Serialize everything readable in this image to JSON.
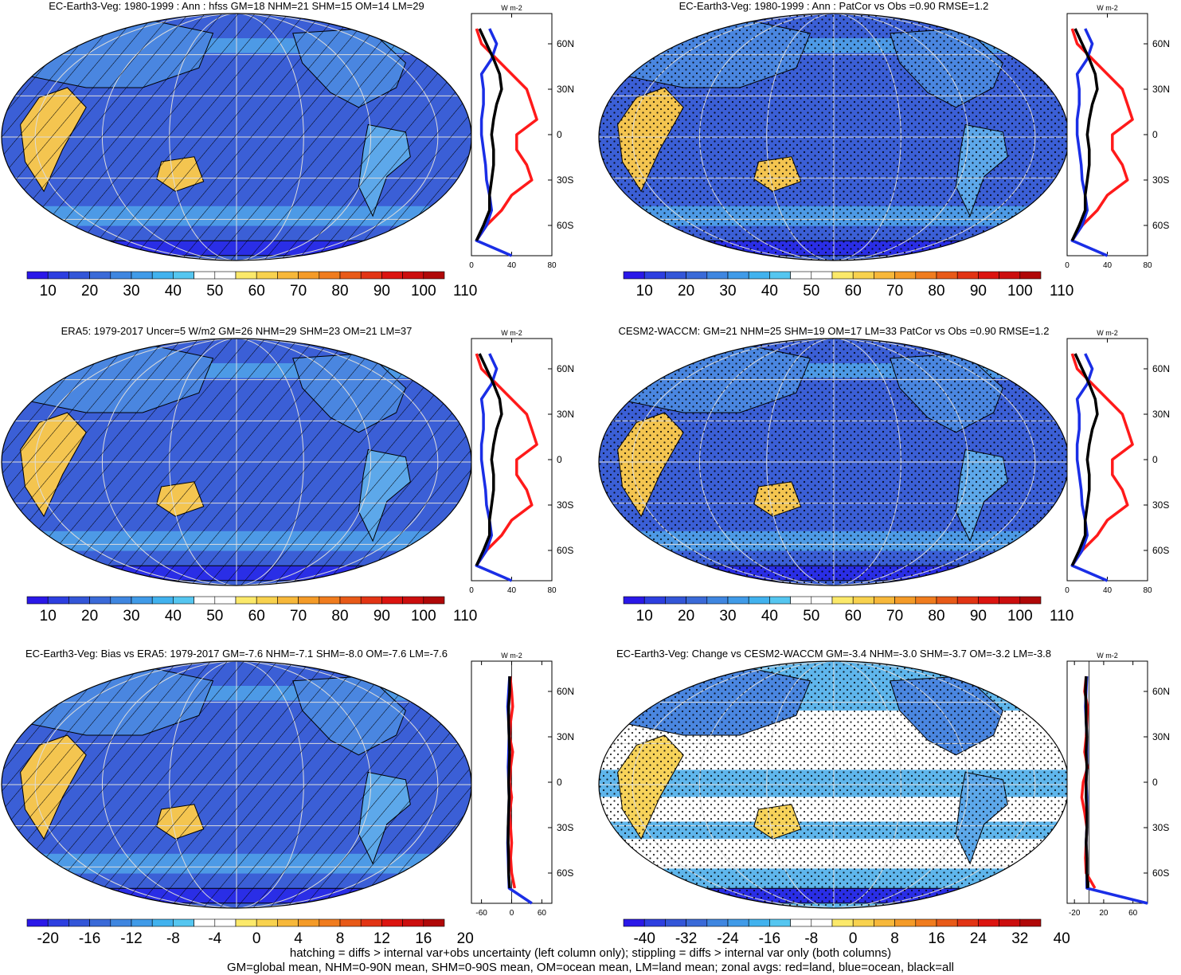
{
  "colors": {
    "deep_blue": "#2a2ee6",
    "blue": "#3a62d8",
    "mid_blue": "#3f88e6",
    "light_blue": "#56b4ee",
    "white": "#ffffff",
    "yellow": "#f7d35a",
    "orange": "#f39a2a",
    "red": "#e2321c",
    "land_line": "#ff1a1a",
    "ocean_line": "#1a2ee6",
    "all_line": "#000000",
    "grid": "#dcdcdc"
  },
  "panels": [
    {
      "title": "EC-Earth3-Veg: 1980-1999 : Ann : hfss GM=18 NHM=21 SHM=15 OM=14 LM=29",
      "hatching": true,
      "stipple": false,
      "base_color": "blue",
      "colorbar": {
        "labels": [
          "10",
          "20",
          "30",
          "40",
          "50",
          "60",
          "70",
          "80",
          "90",
          "100",
          "110"
        ],
        "colors": [
          "#2a18e8",
          "#2d3fe0",
          "#3356d8",
          "#3a6ad8",
          "#3f86e0",
          "#409be8",
          "#41b2ee",
          "#55c6f0",
          "#ffffff",
          "#ffffff",
          "#fbe96a",
          "#f8d24e",
          "#f7b83a",
          "#f49b28",
          "#f07c1e",
          "#e85a18",
          "#e23414",
          "#dc1410",
          "#cc0e0e",
          "#b00808"
        ]
      },
      "profile": {
        "unit": "W m-2",
        "x_ticks": [
          "0",
          "40",
          "80"
        ],
        "y_ticks": [
          "60N",
          "30N",
          "0",
          "30S",
          "60S"
        ],
        "xlim": [
          0,
          80
        ]
      }
    },
    {
      "title": "EC-Earth3-Veg: 1980-1999 : Ann : PatCor vs Obs =0.90 RMSE=1.2",
      "hatching": false,
      "stipple": true,
      "base_color": "blue",
      "colorbar": {
        "labels": [
          "10",
          "20",
          "30",
          "40",
          "50",
          "60",
          "70",
          "80",
          "90",
          "100",
          "110"
        ],
        "colors": [
          "#2a18e8",
          "#2d3fe0",
          "#3356d8",
          "#3a6ad8",
          "#3f86e0",
          "#409be8",
          "#41b2ee",
          "#55c6f0",
          "#ffffff",
          "#ffffff",
          "#fbe96a",
          "#f8d24e",
          "#f7b83a",
          "#f49b28",
          "#f07c1e",
          "#e85a18",
          "#e23414",
          "#dc1410",
          "#cc0e0e",
          "#b00808"
        ]
      },
      "profile": {
        "unit": "W m-2",
        "x_ticks": [
          "0",
          "40",
          "80"
        ],
        "y_ticks": [
          "60N",
          "30N",
          "0",
          "30S",
          "60S"
        ],
        "xlim": [
          0,
          80
        ]
      }
    },
    {
      "title": "ERA5: 1979-2017 Uncer=5 W/m2 GM=26 NHM=29 SHM=23 OM=21 LM=37",
      "hatching": true,
      "stipple": false,
      "base_color": "blue",
      "colorbar": {
        "labels": [
          "10",
          "20",
          "30",
          "40",
          "50",
          "60",
          "70",
          "80",
          "90",
          "100",
          "110"
        ],
        "colors": [
          "#2a18e8",
          "#2d3fe0",
          "#3356d8",
          "#3a6ad8",
          "#3f86e0",
          "#409be8",
          "#41b2ee",
          "#55c6f0",
          "#ffffff",
          "#ffffff",
          "#fbe96a",
          "#f8d24e",
          "#f7b83a",
          "#f49b28",
          "#f07c1e",
          "#e85a18",
          "#e23414",
          "#dc1410",
          "#cc0e0e",
          "#b00808"
        ]
      },
      "profile": {
        "unit": "W m-2",
        "x_ticks": [
          "0",
          "40",
          "80"
        ],
        "y_ticks": [
          "60N",
          "30N",
          "0",
          "30S",
          "60S"
        ],
        "xlim": [
          0,
          80
        ]
      }
    },
    {
      "title": "CESM2-WACCM: GM=21 NHM=25 SHM=19 OM=17 LM=33 PatCor vs Obs =0.90 RMSE=1.2",
      "hatching": false,
      "stipple": true,
      "base_color": "blue",
      "colorbar": {
        "labels": [
          "10",
          "20",
          "30",
          "40",
          "50",
          "60",
          "70",
          "80",
          "90",
          "100",
          "110"
        ],
        "colors": [
          "#2a18e8",
          "#2d3fe0",
          "#3356d8",
          "#3a6ad8",
          "#3f86e0",
          "#409be8",
          "#41b2ee",
          "#55c6f0",
          "#ffffff",
          "#ffffff",
          "#fbe96a",
          "#f8d24e",
          "#f7b83a",
          "#f49b28",
          "#f07c1e",
          "#e85a18",
          "#e23414",
          "#dc1410",
          "#cc0e0e",
          "#b00808"
        ]
      },
      "profile": {
        "unit": "W m-2",
        "x_ticks": [
          "0",
          "40",
          "80"
        ],
        "y_ticks": [
          "60N",
          "30N",
          "0",
          "30S",
          "60S"
        ],
        "xlim": [
          0,
          80
        ]
      }
    },
    {
      "title": "EC-Earth3-Veg: Bias vs ERA5: 1979-2017 GM=-7.6 NHM=-7.1 SHM=-8.0 OM=-7.6 LM=-7.6",
      "hatching": true,
      "stipple": false,
      "base_color": "blue",
      "colorbar": {
        "labels": [
          "-20",
          "-16",
          "-12",
          "-8",
          "-4",
          "0",
          "4",
          "8",
          "12",
          "16",
          "20"
        ],
        "colors": [
          "#2a18e8",
          "#2d3fe0",
          "#3356d8",
          "#3a6ad8",
          "#3f86e0",
          "#409be8",
          "#41b2ee",
          "#55c6f0",
          "#ffffff",
          "#ffffff",
          "#fbe96a",
          "#f8d24e",
          "#f7b83a",
          "#f49b28",
          "#f07c1e",
          "#e85a18",
          "#e23414",
          "#dc1410",
          "#cc0e0e",
          "#b00808"
        ]
      },
      "profile": {
        "unit": "W m-2",
        "x_ticks": [
          "-60",
          "0",
          "60"
        ],
        "y_ticks": [
          "60N",
          "30N",
          "0",
          "30S",
          "60S"
        ],
        "xlim": [
          -80,
          80
        ]
      }
    },
    {
      "title": "EC-Earth3-Veg: Change vs CESM2-WACCM GM=-3.4 NHM=-3.0 SHM=-3.7 OM=-3.2 LM=-3.8",
      "hatching": false,
      "stipple": true,
      "base_color": "light",
      "colorbar": {
        "labels": [
          "-40",
          "-32",
          "-24",
          "-16",
          "-8",
          "0",
          "8",
          "16",
          "24",
          "32",
          "40"
        ],
        "colors": [
          "#2a18e8",
          "#2d3fe0",
          "#3356d8",
          "#3a6ad8",
          "#3f86e0",
          "#409be8",
          "#41b2ee",
          "#55c6f0",
          "#ffffff",
          "#ffffff",
          "#fbe96a",
          "#f8d24e",
          "#f7b83a",
          "#f49b28",
          "#f07c1e",
          "#e85a18",
          "#e23414",
          "#dc1410",
          "#cc0e0e",
          "#b00808"
        ]
      },
      "profile": {
        "unit": "W m-2",
        "x_ticks": [
          "-20",
          "20",
          "60"
        ],
        "y_ticks": [
          "60N",
          "30N",
          "0",
          "30S",
          "60S"
        ],
        "xlim": [
          -30,
          80
        ]
      }
    }
  ],
  "footnote": {
    "line1": "hatching = diffs > internal var+obs uncertainty (left column only); stippling = diffs > internal var only (both columns)",
    "line2": "GM=global mean, NHM=0-90N mean, SHM=0-90S mean, OM=ocean mean, LM=land mean; zonal avgs: red=land, blue=ocean, black=all"
  }
}
